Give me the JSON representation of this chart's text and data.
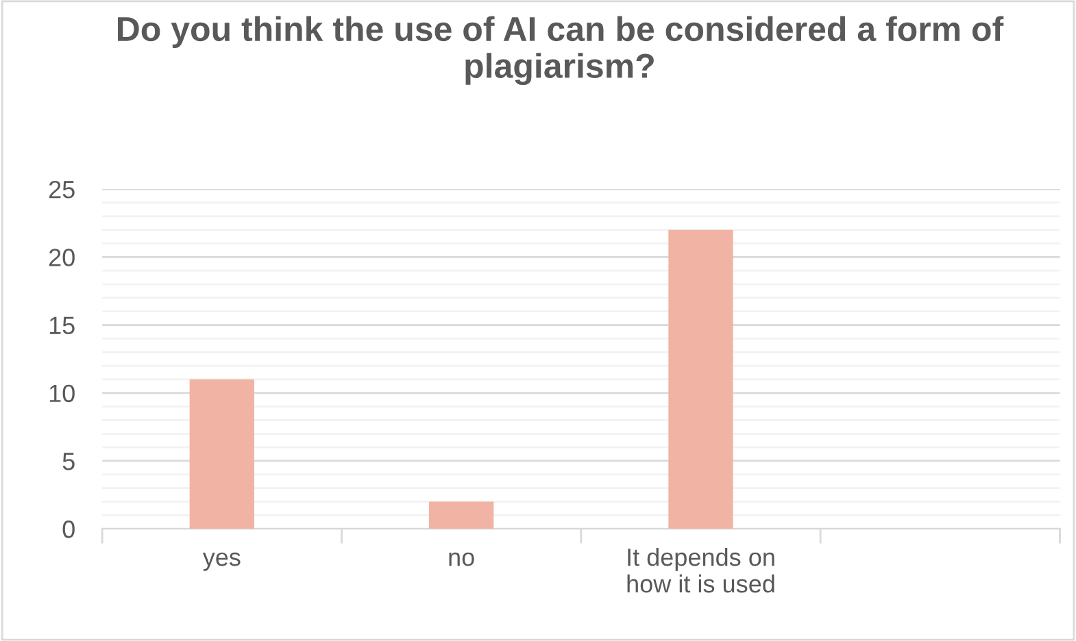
{
  "chart_data": {
    "type": "bar",
    "title": "Do you think the use of AI can be considered a form of plagiarism?",
    "categories": [
      "yes",
      "no",
      "It depends on\nhow it is used",
      null
    ],
    "values": [
      11,
      2,
      22,
      null
    ],
    "color": "#f1b3a3",
    "ylim": [
      0,
      25
    ],
    "yticks": [
      0,
      5,
      10,
      15,
      20,
      25
    ],
    "grid": "y",
    "legend": false
  }
}
